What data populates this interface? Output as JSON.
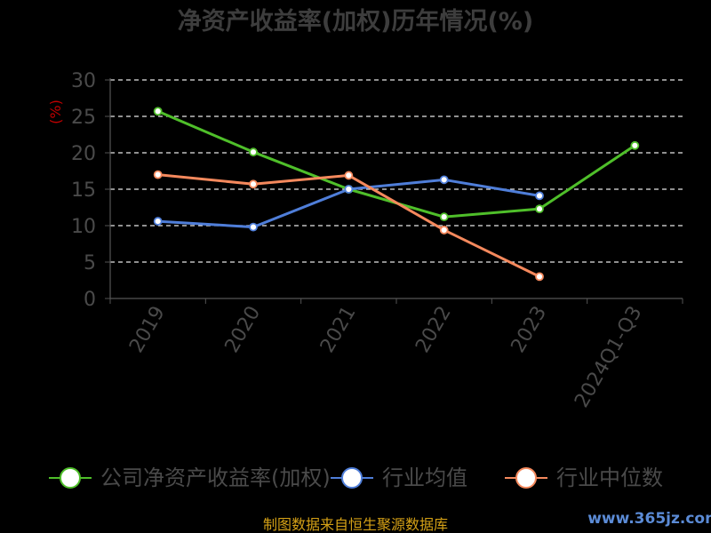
{
  "chart_data": {
    "type": "line",
    "title": "净资产收益率(加权)历年情况(%)",
    "ylabel": "(%)",
    "categories": [
      "2019",
      "2020",
      "2021",
      "2022",
      "2023",
      "2024Q1-Q3"
    ],
    "ylim": [
      0,
      30
    ],
    "yticks": [
      "0",
      "5",
      "10",
      "15",
      "20",
      "25",
      "30"
    ],
    "grid": true,
    "legend_position": "bottom",
    "series": [
      {
        "name": "公司净资产收益率(加权)",
        "color": "#4fbf2a",
        "values": [
          25.7,
          20.1,
          15.0,
          11.2,
          12.3,
          21.0
        ]
      },
      {
        "name": "行业均值",
        "color": "#4f7ed9",
        "values": [
          10.6,
          9.8,
          15.0,
          16.3,
          14.1,
          null
        ]
      },
      {
        "name": "行业中位数",
        "color": "#f5895d",
        "values": [
          17.0,
          15.7,
          16.9,
          9.4,
          3.0,
          null
        ]
      }
    ]
  },
  "footer": {
    "source": "制图数据来自恒生聚源数据库",
    "watermark": "www.365jz.com"
  }
}
